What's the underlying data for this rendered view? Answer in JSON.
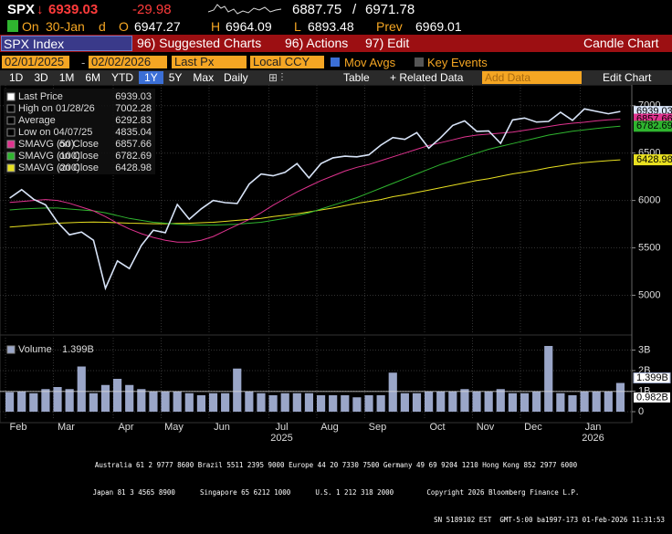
{
  "header": {
    "ticker": "SPX",
    "arrow": "↓",
    "last": "6939.03",
    "change": "-29.98",
    "range_low": "6887.75",
    "range_sep": "/",
    "range_high": "6971.78",
    "on": "On",
    "date": "30-Jan",
    "flag": "d",
    "o_label": "O",
    "open": "6947.27",
    "h_label": "H",
    "high": "6964.09",
    "l_label": "L",
    "low": "6893.48",
    "prev_label": "Prev",
    "prev": "6969.01"
  },
  "toolbar": {
    "security": "SPX Index",
    "menu": [
      "96) Suggested Charts",
      "96) Actions",
      "97) Edit"
    ],
    "chart_type": "Candle Chart"
  },
  "settings": {
    "start": "02/01/2025",
    "end": "02/02/2026",
    "field": "Last Px",
    "currency": "Local CCY",
    "mov_avgs": "Mov Avgs",
    "key_events": "Key Events"
  },
  "periods": [
    "1D",
    "3D",
    "1M",
    "6M",
    "YTD",
    "1Y",
    "5Y",
    "Max"
  ],
  "selected_period": "1Y",
  "frequency": "Daily",
  "links": [
    "Table",
    "+ Related Data"
  ],
  "add_data": "Add Data",
  "edit_chart": "Edit Chart",
  "chart_data": {
    "type": "line",
    "categories": [
      "Feb",
      null,
      null,
      null,
      "Mar",
      null,
      null,
      null,
      null,
      "Apr",
      null,
      null,
      null,
      "May",
      null,
      null,
      null,
      "Jun",
      null,
      null,
      null,
      null,
      "Jul",
      null,
      null,
      null,
      "Aug",
      null,
      null,
      null,
      "Sep",
      null,
      null,
      null,
      null,
      "Oct",
      null,
      null,
      null,
      "Nov",
      null,
      null,
      null,
      "Dec",
      null,
      null,
      null,
      null,
      "Jan",
      null,
      null,
      null
    ],
    "category_years": [
      null,
      null,
      null,
      null,
      null,
      null,
      null,
      null,
      null,
      null,
      null,
      null,
      null,
      null,
      null,
      null,
      null,
      null,
      null,
      null,
      null,
      null,
      "2025",
      null,
      null,
      null,
      null,
      null,
      null,
      null,
      null,
      null,
      null,
      null,
      null,
      null,
      null,
      null,
      null,
      null,
      null,
      null,
      null,
      null,
      null,
      null,
      null,
      null,
      "2026",
      null,
      null,
      null
    ],
    "ylim": [
      4600,
      7200
    ],
    "yticks": [
      5000,
      5500,
      6000,
      6500,
      7000
    ],
    "grid": true,
    "series": [
      {
        "name": "Last Price",
        "legend_value": 6939.03,
        "color": "#d8e4f8",
        "values": [
          6025,
          6114,
          6013,
          5954,
          5770,
          5638,
          5667,
          5580,
          5074,
          5363,
          5282,
          5525,
          5686,
          5660,
          5958,
          5803,
          5912,
          6000,
          5977,
          5968,
          6173,
          6279,
          6260,
          6297,
          6389,
          6238,
          6389,
          6450,
          6467,
          6460,
          6482,
          6584,
          6664,
          6644,
          6716,
          6552,
          6664,
          6792,
          6840,
          6729,
          6734,
          6603,
          6849,
          6870,
          6827,
          6834,
          6930,
          6846,
          6966,
          6940,
          6915,
          6939
        ]
      },
      {
        "name": "SMAVG (50)",
        "note": "on Close",
        "legend_value": 6857.66,
        "color": "#e0338f",
        "values": [
          5980,
          5990,
          6000,
          6010,
          6000,
          5970,
          5930,
          5890,
          5830,
          5760,
          5700,
          5650,
          5610,
          5580,
          5560,
          5560,
          5580,
          5620,
          5680,
          5740,
          5800,
          5870,
          5950,
          6020,
          6090,
          6150,
          6210,
          6260,
          6310,
          6350,
          6380,
          6420,
          6460,
          6500,
          6540,
          6580,
          6610,
          6640,
          6670,
          6690,
          6700,
          6710,
          6720,
          6740,
          6760,
          6780,
          6800,
          6815,
          6825,
          6840,
          6850,
          6857.66
        ]
      },
      {
        "name": "SMAVG (100)",
        "note": "on Close",
        "legend_value": 6782.69,
        "color": "#2fb52f",
        "values": [
          5900,
          5910,
          5915,
          5920,
          5920,
          5910,
          5900,
          5890,
          5870,
          5840,
          5810,
          5790,
          5770,
          5760,
          5750,
          5745,
          5740,
          5740,
          5745,
          5750,
          5760,
          5770,
          5790,
          5810,
          5840,
          5870,
          5910,
          5950,
          5990,
          6030,
          6080,
          6130,
          6180,
          6230,
          6280,
          6330,
          6380,
          6420,
          6460,
          6500,
          6540,
          6570,
          6600,
          6630,
          6660,
          6690,
          6710,
          6730,
          6745,
          6760,
          6772,
          6782.69
        ]
      },
      {
        "name": "SMAVG (200)",
        "note": "on Close",
        "legend_value": 6428.98,
        "color": "#e8e020",
        "values": [
          5720,
          5730,
          5740,
          5750,
          5760,
          5765,
          5770,
          5772,
          5770,
          5765,
          5760,
          5758,
          5755,
          5755,
          5758,
          5760,
          5765,
          5770,
          5780,
          5790,
          5800,
          5810,
          5830,
          5845,
          5860,
          5880,
          5900,
          5920,
          5945,
          5970,
          5990,
          6010,
          6040,
          6060,
          6085,
          6110,
          6135,
          6160,
          6185,
          6210,
          6230,
          6255,
          6280,
          6300,
          6320,
          6345,
          6365,
          6385,
          6400,
          6410,
          6420,
          6428.98
        ]
      }
    ],
    "stats": [
      {
        "label": "High on 01/28/26",
        "value": 7002.28
      },
      {
        "label": "Average",
        "value": 6292.83
      },
      {
        "label": "Low on 04/07/25",
        "value": 4835.04
      }
    ],
    "volume": {
      "name": "Volume",
      "legend_value": "1.399B",
      "color": "#9aa6c8",
      "values": [
        0.95,
        1.0,
        0.9,
        1.1,
        1.2,
        1.1,
        2.2,
        0.9,
        1.3,
        1.6,
        1.3,
        1.1,
        1.0,
        1.0,
        1.0,
        0.9,
        0.8,
        0.9,
        0.9,
        2.1,
        1.0,
        0.9,
        0.8,
        0.9,
        0.9,
        0.9,
        0.8,
        0.8,
        0.8,
        0.7,
        0.8,
        0.8,
        1.9,
        0.9,
        0.9,
        1.0,
        1.0,
        1.0,
        1.1,
        1.0,
        1.0,
        1.1,
        0.9,
        0.9,
        1.0,
        3.2,
        0.9,
        0.8,
        1.0,
        1.0,
        1.0,
        1.399
      ],
      "average": 0.982,
      "average_label": "0.982B",
      "ylim": [
        -0.4,
        3.6
      ],
      "yticks": [
        0,
        {
          "value": 1,
          "label": "1B"
        },
        {
          "value": 2,
          "label": "2B"
        },
        {
          "value": 3,
          "label": "3B"
        }
      ]
    }
  },
  "footer": [
    "Australia 61 2 9777 8600 Brazil 5511 2395 9000 Europe 44 20 7330 7500 Germany 49 69 9204 1210 Hong Kong 852 2977 6000",
    "Japan 81 3 4565 8900      Singapore 65 6212 1000      U.S. 1 212 318 2000        Copyright 2026 Bloomberg Finance L.P.",
    "SN 5189102 EST  GMT-5:00 ba1997-173 01-Feb-2026 11:31:53"
  ]
}
